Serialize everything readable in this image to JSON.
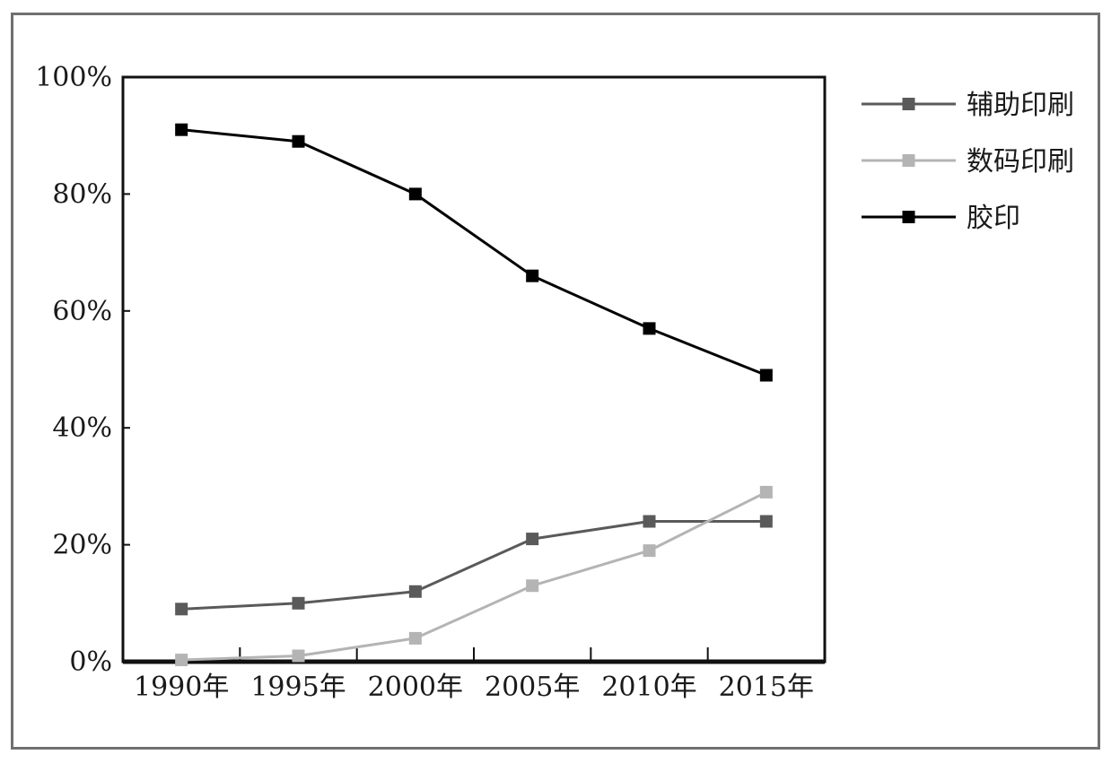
{
  "chart_data": {
    "type": "line",
    "title": "",
    "xlabel": "",
    "ylabel": "",
    "categories": [
      "1990年",
      "1995年",
      "2000年",
      "2005年",
      "2010年",
      "2015年"
    ],
    "ylim": [
      0,
      100
    ],
    "yticks": [
      "0%",
      "20%",
      "40%",
      "60%",
      "80%",
      "100%"
    ],
    "ytick_values": [
      0,
      20,
      40,
      60,
      80,
      100
    ],
    "grid": false,
    "legend_position": "right",
    "series": [
      {
        "name": "辅助印刷",
        "color": "#5a5a5a",
        "values": [
          9,
          10,
          12,
          21,
          24,
          24
        ]
      },
      {
        "name": "数码印刷",
        "color": "#b4b4b4",
        "values": [
          0.3,
          1,
          4,
          13,
          19,
          29
        ]
      },
      {
        "name": "胶印",
        "color": "#000000",
        "values": [
          91,
          89,
          80,
          66,
          57,
          49
        ]
      }
    ]
  }
}
